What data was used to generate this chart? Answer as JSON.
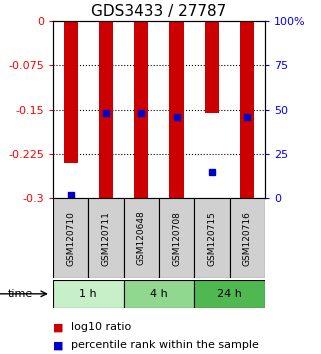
{
  "title": "GDS3433 / 27787",
  "samples": [
    "GSM120710",
    "GSM120711",
    "GSM120648",
    "GSM120708",
    "GSM120715",
    "GSM120716"
  ],
  "log10_ratio": [
    -0.24,
    -0.3,
    -0.3,
    -0.3,
    -0.155,
    -0.3
  ],
  "percentile_rank": [
    2.0,
    48.0,
    48.0,
    46.0,
    15.0,
    46.0
  ],
  "ylim_left": [
    -0.3,
    0.0
  ],
  "ylim_right": [
    0.0,
    100.0
  ],
  "yticks_left": [
    0,
    -0.075,
    -0.15,
    -0.225,
    -0.3
  ],
  "yticks_right": [
    0,
    25,
    50,
    75,
    100
  ],
  "ytick_labels_left": [
    "0",
    "-0.075",
    "-0.15",
    "-0.225",
    "-0.3"
  ],
  "ytick_labels_right": [
    "0",
    "25",
    "50",
    "75",
    "100%"
  ],
  "grid_values": [
    -0.075,
    -0.15,
    -0.225
  ],
  "time_groups": [
    {
      "label": "1 h",
      "start": 0,
      "end": 2,
      "color": "#c8f0c8"
    },
    {
      "label": "4 h",
      "start": 2,
      "end": 4,
      "color": "#90d890"
    },
    {
      "label": "24 h",
      "start": 4,
      "end": 6,
      "color": "#50b850"
    }
  ],
  "bar_color": "#cc0000",
  "blue_color": "#0000cc",
  "bar_width": 0.4,
  "blue_size": 5,
  "legend_red": "log10 ratio",
  "legend_blue": "percentile rank within the sample",
  "time_label": "time",
  "background_color": "#ffffff",
  "plot_bg_color": "#ffffff",
  "sample_box_color": "#d0d0d0",
  "title_fontsize": 11,
  "tick_fontsize": 8,
  "legend_fontsize": 8
}
